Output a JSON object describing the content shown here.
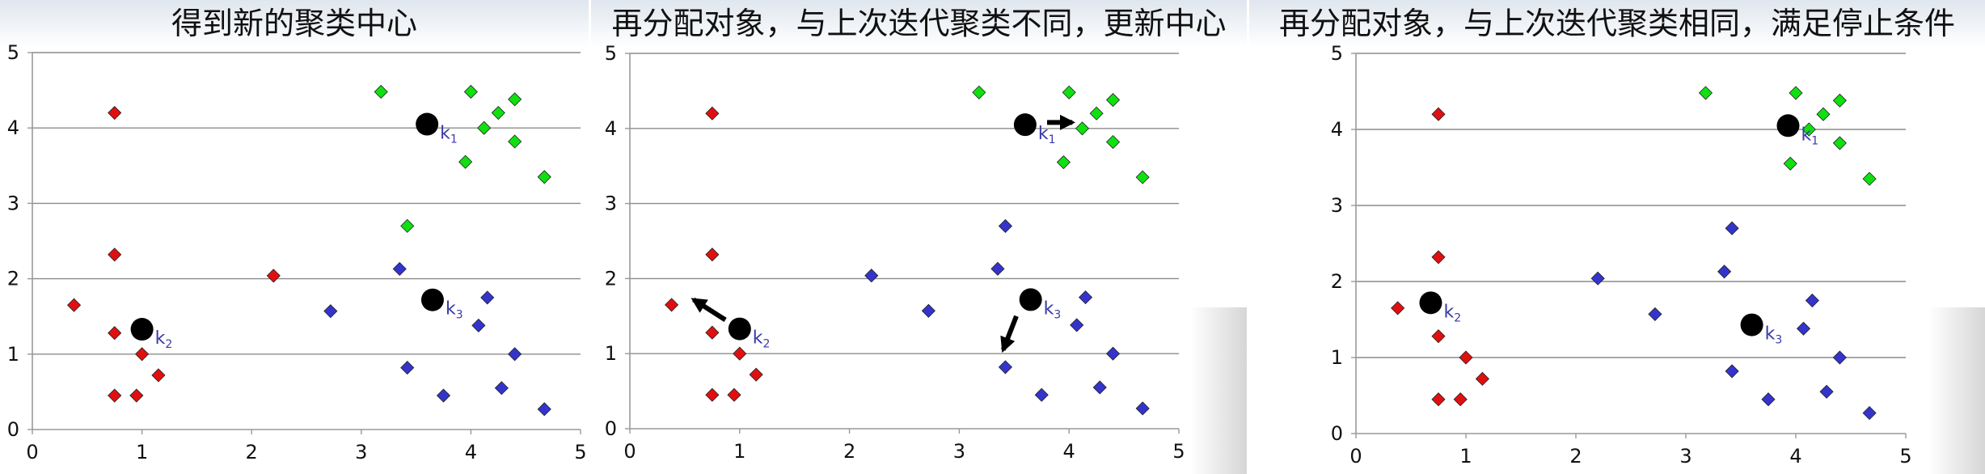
{
  "chart_data": [
    {
      "type": "scatter",
      "title": "得到新的聚类中心",
      "xlim": [
        0,
        5
      ],
      "ylim": [
        0,
        5
      ],
      "xticks": [
        "0",
        "1",
        "2",
        "3",
        "4",
        "5"
      ],
      "yticks": [
        "0",
        "1",
        "2",
        "3",
        "4",
        "5"
      ],
      "grid": "horizontal",
      "series": [
        {
          "color": "#e01010",
          "points": [
            [
              0.38,
              1.65
            ],
            [
              0.75,
              2.32
            ],
            [
              0.75,
              1.28
            ],
            [
              0.75,
              0.45
            ],
            [
              0.95,
              0.45
            ],
            [
              1.0,
              1.0
            ],
            [
              1.15,
              0.72
            ],
            [
              2.2,
              2.04
            ],
            [
              0.75,
              4.2
            ]
          ]
        },
        {
          "color": "#10e010",
          "points": [
            [
              3.18,
              4.48
            ],
            [
              4.0,
              4.48
            ],
            [
              4.4,
              4.38
            ],
            [
              4.25,
              4.2
            ],
            [
              4.12,
              4.0
            ],
            [
              4.4,
              3.82
            ],
            [
              3.95,
              3.55
            ],
            [
              4.67,
              3.35
            ],
            [
              3.42,
              2.7
            ]
          ]
        },
        {
          "color": "#3434cc",
          "points": [
            [
              2.72,
              1.57
            ],
            [
              3.35,
              2.13
            ],
            [
              4.15,
              1.75
            ],
            [
              4.07,
              1.38
            ],
            [
              4.4,
              1.0
            ],
            [
              3.42,
              0.82
            ],
            [
              3.75,
              0.45
            ],
            [
              4.28,
              0.55
            ],
            [
              4.67,
              0.27
            ]
          ]
        }
      ],
      "centroids": [
        {
          "label": "k",
          "sub": "1",
          "x": 3.6,
          "y": 4.05
        },
        {
          "label": "k",
          "sub": "2",
          "x": 1.0,
          "y": 1.33
        },
        {
          "label": "k",
          "sub": "3",
          "x": 3.65,
          "y": 1.72
        }
      ],
      "arrows": []
    },
    {
      "type": "scatter",
      "title": "再分配对象，与上次迭代聚类不同，更新中心",
      "xlim": [
        0,
        5
      ],
      "ylim": [
        0,
        5
      ],
      "xticks": [
        "0",
        "1",
        "2",
        "3",
        "4",
        "5"
      ],
      "yticks": [
        "0",
        "1",
        "2",
        "3",
        "4",
        "5"
      ],
      "grid": "horizontal",
      "series": [
        {
          "color": "#e01010",
          "points": [
            [
              0.38,
              1.65
            ],
            [
              0.75,
              2.32
            ],
            [
              0.75,
              1.28
            ],
            [
              0.75,
              0.45
            ],
            [
              0.95,
              0.45
            ],
            [
              1.0,
              1.0
            ],
            [
              1.15,
              0.72
            ],
            [
              0.75,
              4.2
            ]
          ]
        },
        {
          "color": "#10e010",
          "points": [
            [
              3.18,
              4.48
            ],
            [
              4.0,
              4.48
            ],
            [
              4.4,
              4.38
            ],
            [
              4.25,
              4.2
            ],
            [
              4.12,
              4.0
            ],
            [
              4.4,
              3.82
            ],
            [
              3.95,
              3.55
            ],
            [
              4.67,
              3.35
            ]
          ]
        },
        {
          "color": "#3434cc",
          "points": [
            [
              2.2,
              2.04
            ],
            [
              2.72,
              1.57
            ],
            [
              3.35,
              2.13
            ],
            [
              3.42,
              2.7
            ],
            [
              4.15,
              1.75
            ],
            [
              4.07,
              1.38
            ],
            [
              4.4,
              1.0
            ],
            [
              3.42,
              0.82
            ],
            [
              3.75,
              0.45
            ],
            [
              4.28,
              0.55
            ],
            [
              4.67,
              0.27
            ]
          ]
        }
      ],
      "centroids": [
        {
          "label": "k",
          "sub": "1",
          "x": 3.6,
          "y": 4.05
        },
        {
          "label": "k",
          "sub": "2",
          "x": 1.0,
          "y": 1.33
        },
        {
          "label": "k",
          "sub": "3",
          "x": 3.65,
          "y": 1.72
        }
      ],
      "arrows": [
        {
          "from": [
            3.8,
            4.08
          ],
          "to": [
            4.03,
            4.08
          ]
        },
        {
          "from": [
            0.87,
            1.45
          ],
          "to": [
            0.58,
            1.72
          ]
        },
        {
          "from": [
            3.52,
            1.5
          ],
          "to": [
            3.4,
            1.05
          ]
        }
      ]
    },
    {
      "type": "scatter",
      "title": "再分配对象，与上次迭代聚类相同，满足停止条件",
      "xlim": [
        0,
        5
      ],
      "ylim": [
        0,
        5
      ],
      "xticks": [
        "0",
        "1",
        "2",
        "3",
        "4",
        "5"
      ],
      "yticks": [
        "0",
        "1",
        "2",
        "3",
        "4",
        "5"
      ],
      "grid": "horizontal",
      "series": [
        {
          "color": "#e01010",
          "points": [
            [
              0.38,
              1.65
            ],
            [
              0.75,
              2.32
            ],
            [
              0.75,
              1.28
            ],
            [
              0.75,
              0.45
            ],
            [
              0.95,
              0.45
            ],
            [
              1.0,
              1.0
            ],
            [
              1.15,
              0.72
            ],
            [
              0.75,
              4.2
            ]
          ]
        },
        {
          "color": "#10e010",
          "points": [
            [
              3.18,
              4.48
            ],
            [
              4.0,
              4.48
            ],
            [
              4.4,
              4.38
            ],
            [
              4.25,
              4.2
            ],
            [
              4.12,
              4.0
            ],
            [
              4.4,
              3.82
            ],
            [
              3.95,
              3.55
            ],
            [
              4.67,
              3.35
            ]
          ]
        },
        {
          "color": "#3434cc",
          "points": [
            [
              2.2,
              2.04
            ],
            [
              2.72,
              1.57
            ],
            [
              3.35,
              2.13
            ],
            [
              3.42,
              2.7
            ],
            [
              4.15,
              1.75
            ],
            [
              4.07,
              1.38
            ],
            [
              4.4,
              1.0
            ],
            [
              3.42,
              0.82
            ],
            [
              3.75,
              0.45
            ],
            [
              4.28,
              0.55
            ],
            [
              4.67,
              0.27
            ]
          ]
        }
      ],
      "centroids": [
        {
          "label": "k",
          "sub": "1",
          "x": 3.93,
          "y": 4.05
        },
        {
          "label": "k",
          "sub": "2",
          "x": 0.68,
          "y": 1.72
        },
        {
          "label": "k",
          "sub": "3",
          "x": 3.6,
          "y": 1.43
        }
      ],
      "arrows": []
    }
  ],
  "style": {
    "axis_color": "#999999",
    "grid_color": "#8c8c8c",
    "centroid_color": "#000000",
    "centroid_label_color": "#3a3aa8",
    "tick_color": "#111111"
  }
}
